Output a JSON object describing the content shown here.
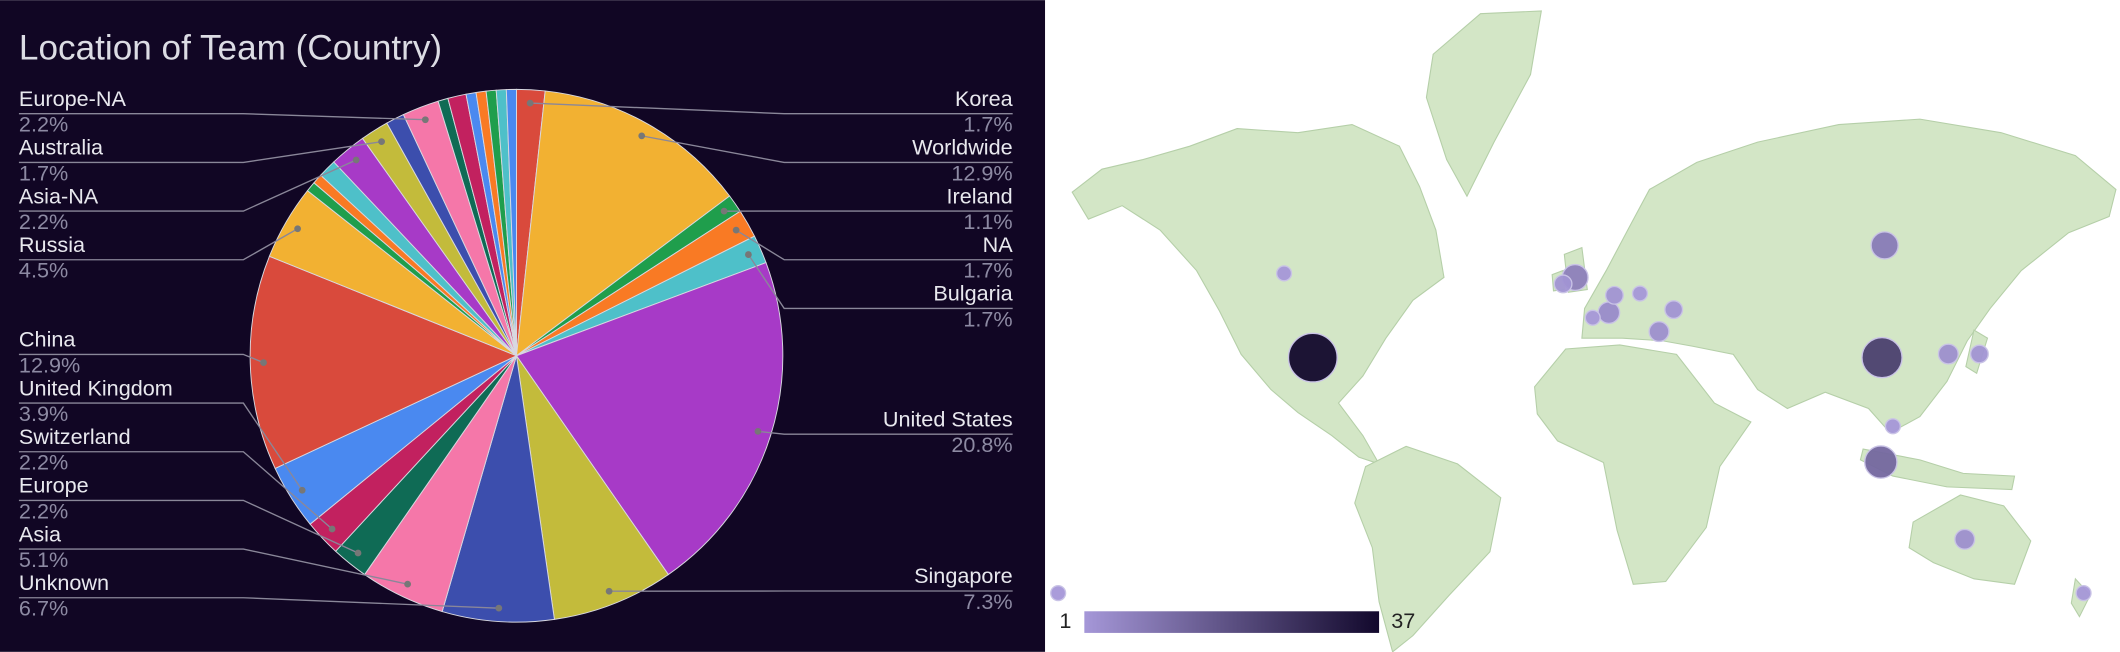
{
  "chart_data": [
    {
      "type": "pie",
      "title": "Location of Team (Country)",
      "categories": [
        "Korea",
        "Worldwide",
        "Ireland",
        "NA",
        "Bulgaria",
        "United States",
        "Singapore",
        "Unknown",
        "Asia",
        "Europe",
        "Switzerland",
        "United Kingdom",
        "China",
        "Russia",
        null,
        null,
        null,
        "Asia-NA",
        "Australia",
        null,
        "Europe-NA",
        null,
        null,
        null,
        null,
        null,
        null,
        null
      ],
      "values": [
        1.7,
        12.9,
        1.1,
        1.7,
        1.7,
        20.8,
        7.3,
        6.7,
        5.1,
        2.2,
        2.2,
        3.9,
        12.9,
        4.5,
        0.6,
        0.6,
        1.1,
        2.2,
        1.7,
        1.1,
        2.2,
        0.6,
        1.1,
        0.6,
        0.6,
        0.6,
        0.6,
        0.6
      ],
      "value_labels": [
        "1.7%",
        "12.9%",
        "1.1%",
        "1.7%",
        "1.7%",
        "20.8%",
        "7.3%",
        "6.7%",
        "5.1%",
        "2.2%",
        "2.2%",
        "3.9%",
        "12.9%",
        "4.5%",
        null,
        null,
        null,
        "2.2%",
        "1.7%",
        null,
        "2.2%",
        null,
        null,
        null,
        null,
        null,
        null,
        null
      ],
      "colors": [
        "#d94a3c",
        "#f2b132",
        "#1f9e4c",
        "#f97a24",
        "#4ec0c9",
        "#a73ac7",
        "#c3bb3b",
        "#3c4ead",
        "#f577a9",
        "#0f6b55",
        "#c2215f",
        "#4a89f0",
        "#d94a3c",
        "#f2b132",
        "#1f9e4c",
        "#f97a24",
        "#4ec0c9",
        "#a73ac7",
        "#c3bb3b",
        "#3c4ead",
        "#f577a9",
        "#0f6b55",
        "#c2215f",
        "#4a89f0",
        "#f97a24",
        "#1f9e4c",
        "#4ec0c9",
        "#4a89f0"
      ]
    },
    {
      "type": "bubble-map",
      "points": [
        {
          "lon": -91.2,
          "lat": 35,
          "value": 37
        },
        {
          "lon": -101,
          "lat": 54.9,
          "value": 1
        },
        {
          "lon": -178,
          "lat": -39,
          "value": 1
        },
        {
          "lon": -1.8,
          "lat": 54.1,
          "value": 7
        },
        {
          "lon": -5.9,
          "lat": 52.8,
          "value": 2
        },
        {
          "lon": 4.2,
          "lat": 45.3,
          "value": 1
        },
        {
          "lon": 9.7,
          "lat": 46.5,
          "value": 4
        },
        {
          "lon": 11.6,
          "lat": 50.4,
          "value": 2
        },
        {
          "lon": 20.3,
          "lat": 50.8,
          "value": 1
        },
        {
          "lon": 26.8,
          "lat": 41.9,
          "value": 3
        },
        {
          "lon": 31.8,
          "lat": 47.2,
          "value": 2
        },
        {
          "lon": 103.7,
          "lat": 60,
          "value": 8
        },
        {
          "lon": 102.8,
          "lat": 35,
          "value": 23
        },
        {
          "lon": 102.4,
          "lat": 2,
          "value": 13
        },
        {
          "lon": 106.5,
          "lat": 14,
          "value": 1
        },
        {
          "lon": 125.4,
          "lat": 36,
          "value": 3
        },
        {
          "lon": 136,
          "lat": 36,
          "value": 2
        },
        {
          "lon": 131,
          "lat": -23.5,
          "value": 3
        },
        {
          "lon": 171.5,
          "lat": -39,
          "value": 1
        }
      ],
      "color_range": [
        1,
        37
      ],
      "colors": [
        "#a597d8",
        "#12082c"
      ]
    }
  ]
}
